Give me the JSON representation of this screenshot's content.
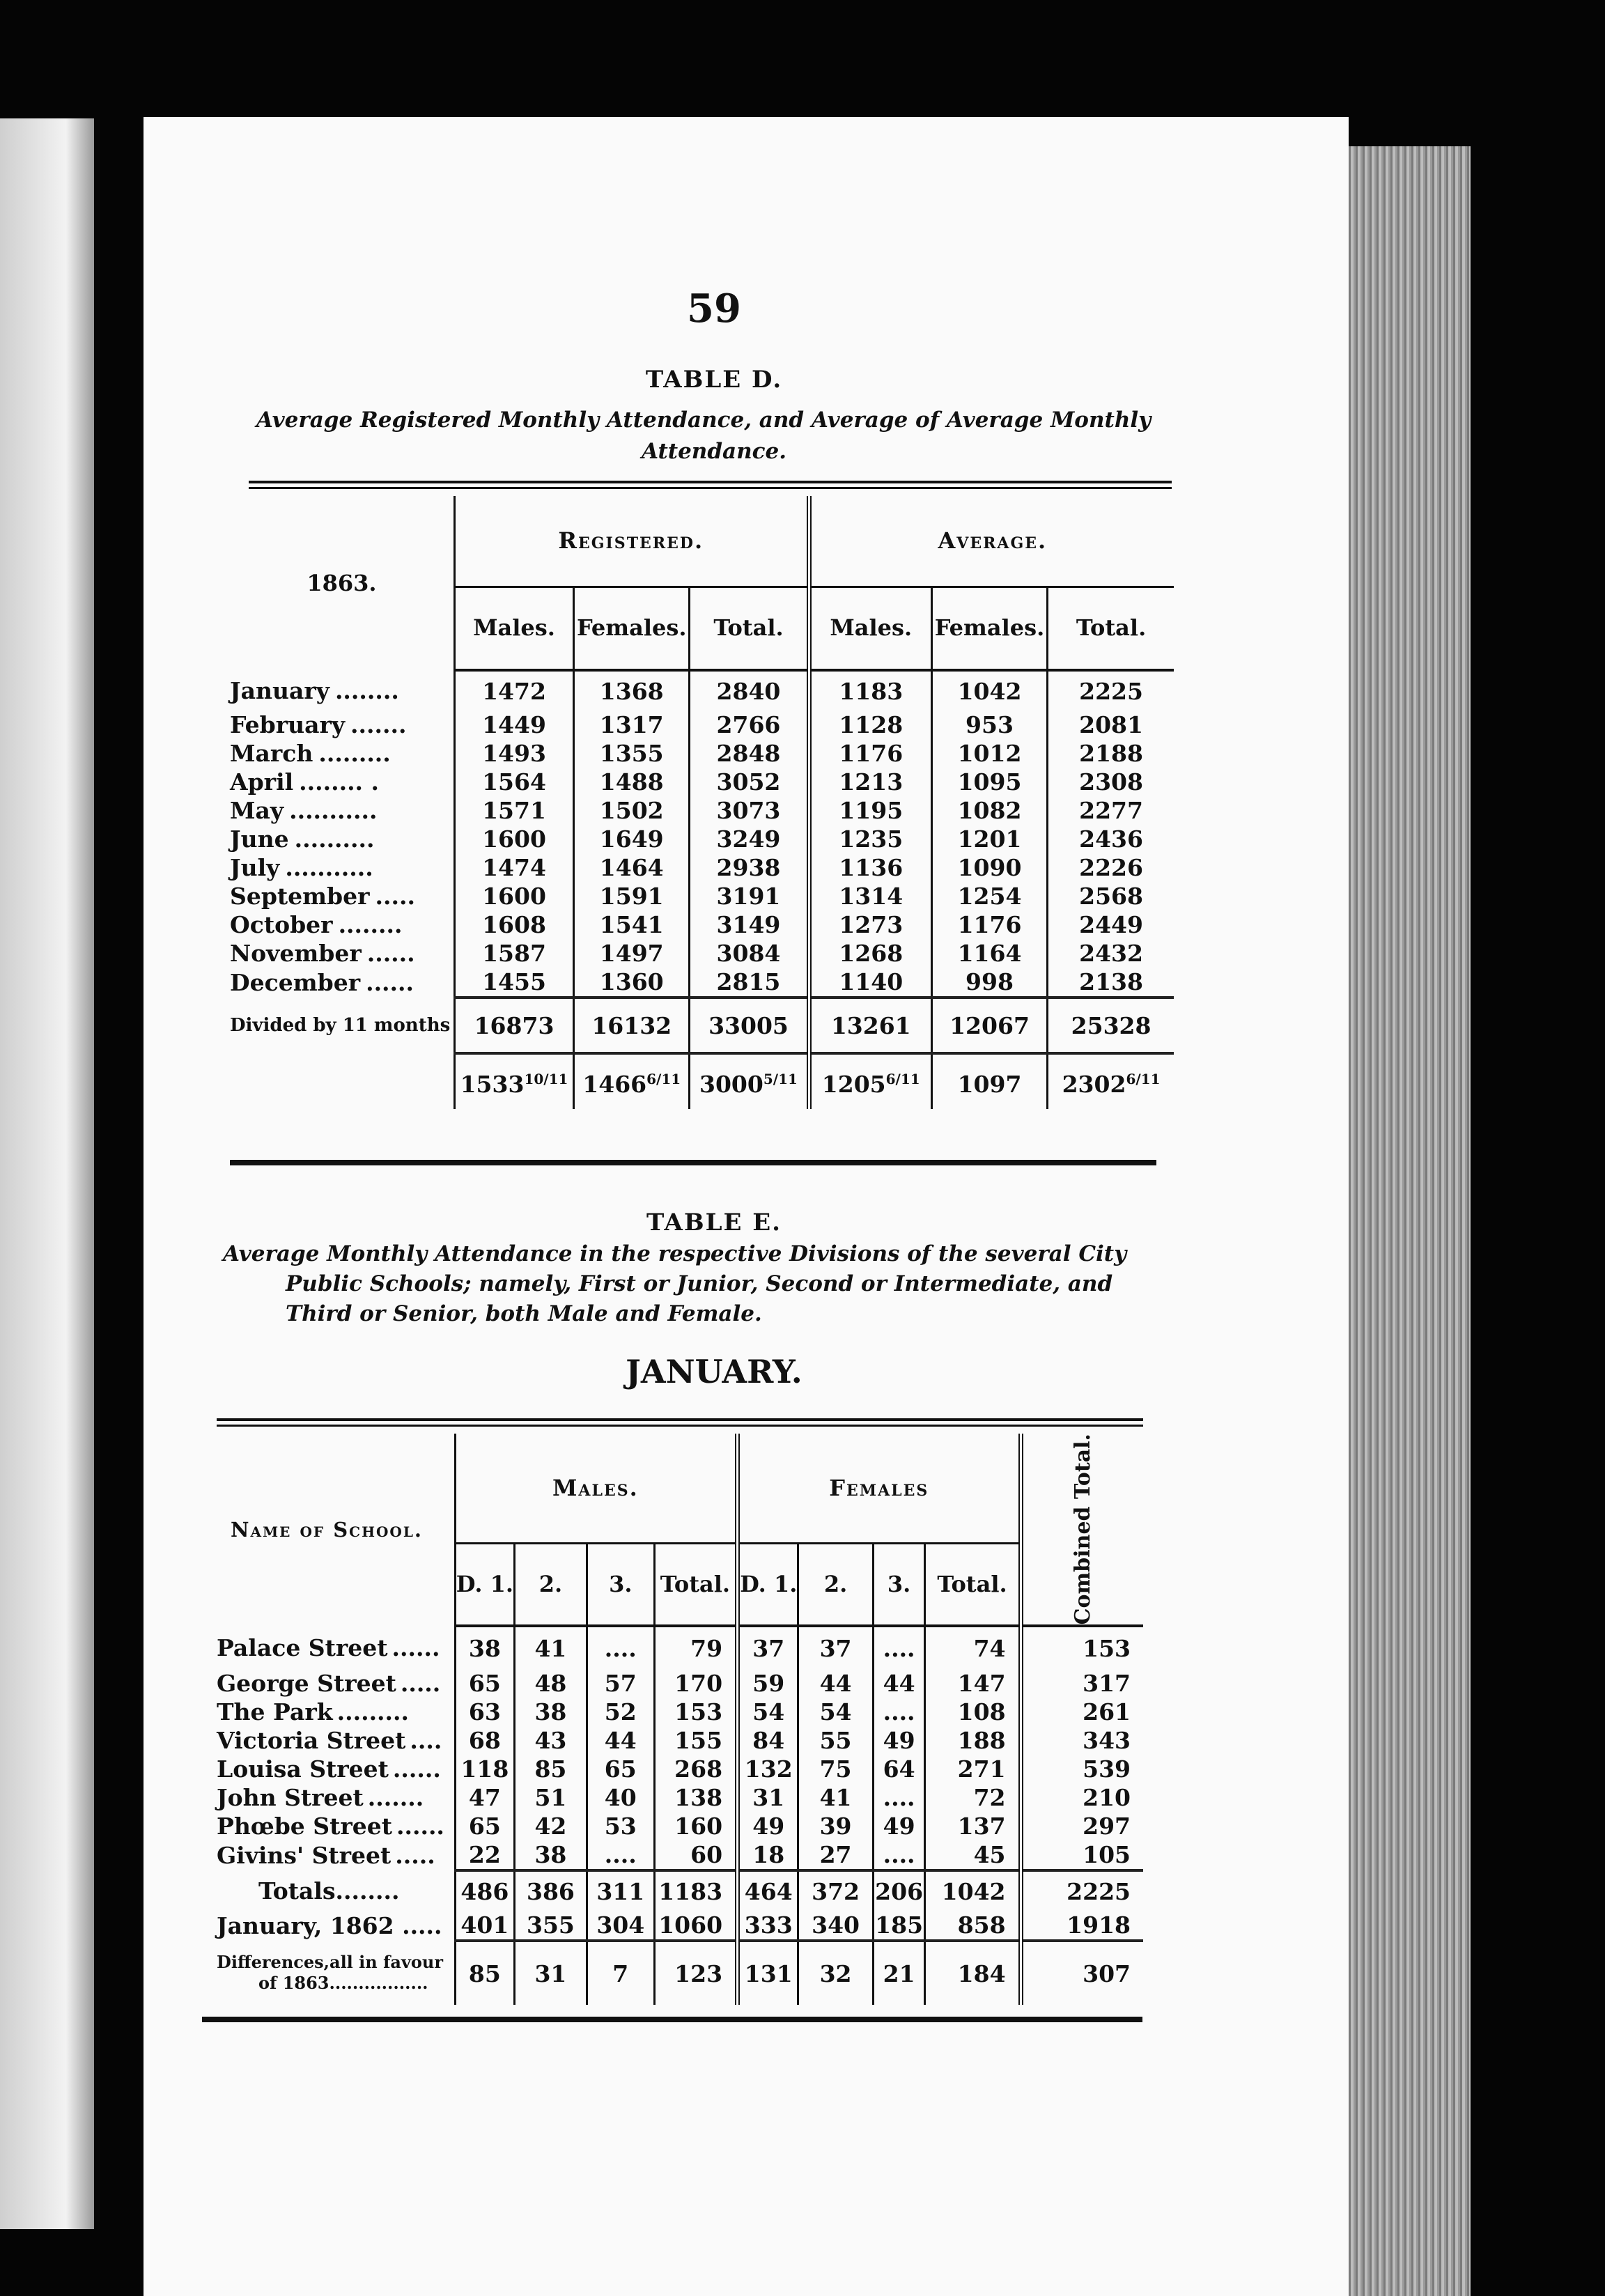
{
  "page_number": "59",
  "table_d": {
    "title": "TABLE D.",
    "subtitle_1": "Average Registered Monthly Attendance, and Average of Average Monthly",
    "subtitle_2": "Attendance.",
    "year": "1863.",
    "registered": "Registered.",
    "average": "Average.",
    "col_males": "Males.",
    "col_females": "Females.",
    "col_total": "Total.",
    "rows": [
      {
        "month": "January",
        "dots": "........",
        "rm": "1472",
        "rf": "1368",
        "rt": "2840",
        "am": "1183",
        "af": "1042",
        "at": "2225"
      },
      {
        "month": "February",
        "dots": ".......",
        "rm": "1449",
        "rf": "1317",
        "rt": "2766",
        "am": "1128",
        "af": "953",
        "at": "2081"
      },
      {
        "month": "March",
        "dots": ".........",
        "rm": "1493",
        "rf": "1355",
        "rt": "2848",
        "am": "1176",
        "af": "1012",
        "at": "2188"
      },
      {
        "month": "April",
        "dots": "........ .",
        "rm": "1564",
        "rf": "1488",
        "rt": "3052",
        "am": "1213",
        "af": "1095",
        "at": "2308"
      },
      {
        "month": "May",
        "dots": "...........",
        "rm": "1571",
        "rf": "1502",
        "rt": "3073",
        "am": "1195",
        "af": "1082",
        "at": "2277"
      },
      {
        "month": "June",
        "dots": "..........",
        "rm": "1600",
        "rf": "1649",
        "rt": "3249",
        "am": "1235",
        "af": "1201",
        "at": "2436"
      },
      {
        "month": "July",
        "dots": "...........",
        "rm": "1474",
        "rf": "1464",
        "rt": "2938",
        "am": "1136",
        "af": "1090",
        "at": "2226"
      },
      {
        "month": "September",
        "dots": ".....",
        "rm": "1600",
        "rf": "1591",
        "rt": "3191",
        "am": "1314",
        "af": "1254",
        "at": "2568"
      },
      {
        "month": "October",
        "dots": "........",
        "rm": "1608",
        "rf": "1541",
        "rt": "3149",
        "am": "1273",
        "af": "1176",
        "at": "2449"
      },
      {
        "month": "November",
        "dots": "......",
        "rm": "1587",
        "rf": "1497",
        "rt": "3084",
        "am": "1268",
        "af": "1164",
        "at": "2432"
      },
      {
        "month": "December",
        "dots": "......",
        "rm": "1455",
        "rf": "1360",
        "rt": "2815",
        "am": "1140",
        "af": "998",
        "at": "2138"
      }
    ],
    "divided_label": "Divided by 11 months",
    "sums": {
      "rm": "16873",
      "rf": "16132",
      "rt": "33005",
      "am": "13261",
      "af": "12067",
      "at": "25328"
    },
    "averages": {
      "rm": "1533",
      "rm_frac": "10/11",
      "rf": "1466",
      "rf_frac": "6/11",
      "rt": "3000",
      "rt_frac": "5/11",
      "am": "1205",
      "am_frac": "6/11",
      "af": "1097",
      "af_frac": "",
      "at": "2302",
      "at_frac": "6/11"
    }
  },
  "table_e": {
    "title": "TABLE E.",
    "subtitle_1": "Average Monthly Attendance in the respective Divisions of the several City",
    "subtitle_2": "Public Schools; namely, First or Junior, Second or Intermediate, and",
    "subtitle_3": "Third or Senior, both Male and Female.",
    "month": "JANUARY.",
    "col_name": "Name of School.",
    "males": "Males.",
    "females": "Females",
    "col_d1": "D. 1.",
    "col_2": "2.",
    "col_3": "3.",
    "col_total": "Total.",
    "combined": "Combined Total.",
    "rows": [
      {
        "name": "Palace Street",
        "dots": "......",
        "m1": "38",
        "m2": "41",
        "m3": "....",
        "mt": "79",
        "f1": "37",
        "f2": "37",
        "f3": "....",
        "ft": "74",
        "ct": "153"
      },
      {
        "name": "George Street",
        "dots": ".....",
        "m1": "65",
        "m2": "48",
        "m3": "57",
        "mt": "170",
        "f1": "59",
        "f2": "44",
        "f3": "44",
        "ft": "147",
        "ct": "317"
      },
      {
        "name": "The Park",
        "dots": ".........",
        "m1": "63",
        "m2": "38",
        "m3": "52",
        "mt": "153",
        "f1": "54",
        "f2": "54",
        "f3": "....",
        "ft": "108",
        "ct": "261"
      },
      {
        "name": "Victoria Street",
        "dots": "....",
        "m1": "68",
        "m2": "43",
        "m3": "44",
        "mt": "155",
        "f1": "84",
        "f2": "55",
        "f3": "49",
        "ft": "188",
        "ct": "343"
      },
      {
        "name": "Louisa Street",
        "dots": "......",
        "m1": "118",
        "m2": "85",
        "m3": "65",
        "mt": "268",
        "f1": "132",
        "f2": "75",
        "f3": "64",
        "ft": "271",
        "ct": "539"
      },
      {
        "name": "John Street",
        "dots": ".......",
        "m1": "47",
        "m2": "51",
        "m3": "40",
        "mt": "138",
        "f1": "31",
        "f2": "41",
        "f3": "....",
        "ft": "72",
        "ct": "210"
      },
      {
        "name": "Phœbe Street",
        "dots": "......",
        "m1": "65",
        "m2": "42",
        "m3": "53",
        "mt": "160",
        "f1": "49",
        "f2": "39",
        "f3": "49",
        "ft": "137",
        "ct": "297"
      },
      {
        "name": "Givins' Street",
        "dots": ".....",
        "m1": "22",
        "m2": "38",
        "m3": "....",
        "mt": "60",
        "f1": "18",
        "f2": "27",
        "f3": "....",
        "ft": "45",
        "ct": "105"
      }
    ],
    "totals": {
      "name": "Totals........",
      "m1": "486",
      "m2": "386",
      "m3": "311",
      "mt": "1183",
      "f1": "464",
      "f2": "372",
      "f3": "206",
      "ft": "1042",
      "ct": "2225"
    },
    "prev": {
      "name": "January, 1862 .....",
      "m1": "401",
      "m2": "355",
      "m3": "304",
      "mt": "1060",
      "f1": "333",
      "f2": "340",
      "f3": "185",
      "ft": "858",
      "ct": "1918"
    },
    "diff": {
      "name_1": "Differences,all in favour",
      "name_2": "of 1863.................",
      "m1": "85",
      "m2": "31",
      "m3": "7",
      "mt": "123",
      "f1": "131",
      "f2": "32",
      "f3": "21",
      "ft": "184",
      "ct": "307"
    }
  }
}
